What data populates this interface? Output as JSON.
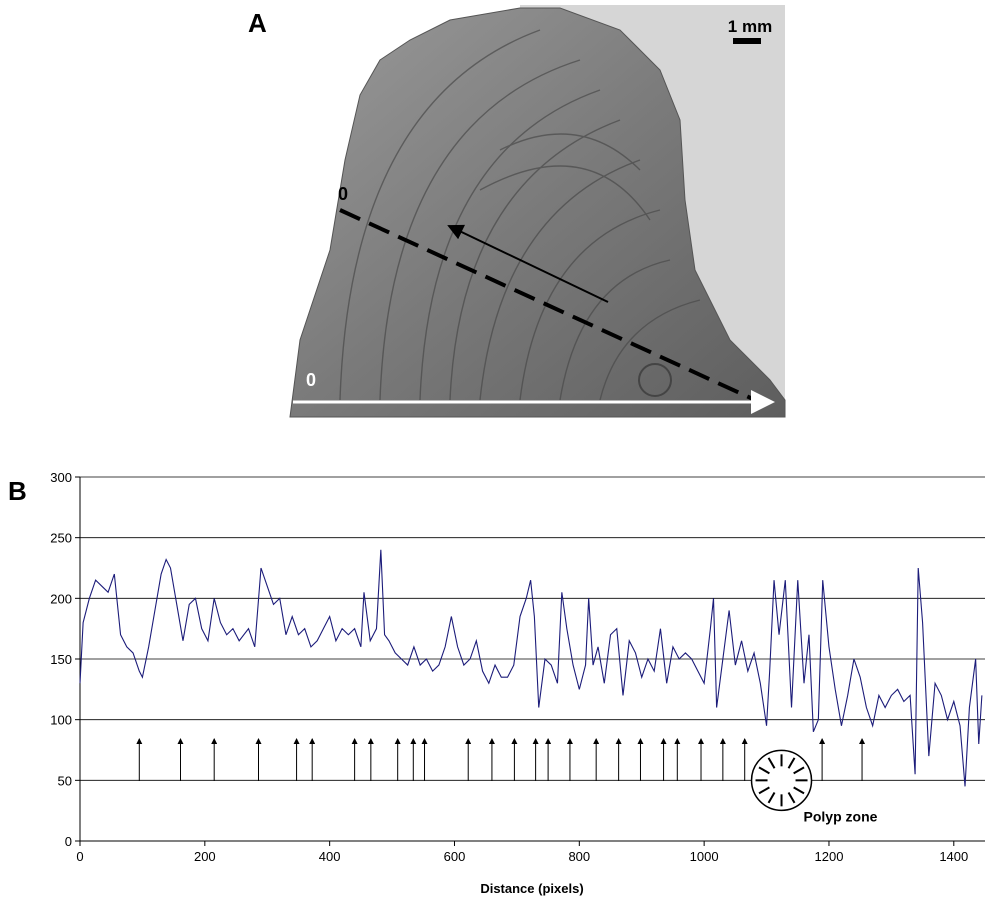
{
  "panel_a": {
    "label": "A",
    "scale_bar": "1 mm",
    "origin_labels": [
      "0",
      "0"
    ]
  },
  "chart_data": {
    "type": "line",
    "panel_label": "B",
    "xlabel": "Distance (pixels)",
    "x": [
      0,
      5,
      15,
      25,
      35,
      45,
      55,
      65,
      75,
      85,
      95,
      100,
      110,
      120,
      130,
      138,
      145,
      155,
      165,
      175,
      185,
      195,
      205,
      215,
      225,
      235,
      245,
      255,
      270,
      280,
      290,
      300,
      310,
      320,
      330,
      340,
      350,
      360,
      370,
      380,
      390,
      400,
      410,
      420,
      430,
      440,
      450,
      455,
      465,
      475,
      482,
      488,
      495,
      505,
      515,
      525,
      535,
      545,
      555,
      565,
      575,
      585,
      595,
      605,
      615,
      625,
      635,
      645,
      655,
      665,
      675,
      685,
      695,
      705,
      715,
      722,
      728,
      735,
      745,
      755,
      765,
      772,
      780,
      790,
      800,
      810,
      815,
      822,
      830,
      840,
      850,
      860,
      870,
      880,
      890,
      900,
      910,
      920,
      930,
      940,
      950,
      960,
      970,
      980,
      990,
      1000,
      1010,
      1015,
      1020,
      1030,
      1040,
      1050,
      1060,
      1070,
      1080,
      1090,
      1100,
      1105,
      1112,
      1120,
      1130,
      1140,
      1150,
      1160,
      1168,
      1175,
      1183,
      1190,
      1200,
      1210,
      1220,
      1230,
      1240,
      1250,
      1260,
      1270,
      1280,
      1290,
      1300,
      1310,
      1320,
      1330,
      1338,
      1343,
      1350,
      1360,
      1370,
      1380,
      1390,
      1400,
      1410,
      1418,
      1425,
      1435,
      1440,
      1445
    ],
    "values": [
      130,
      180,
      200,
      215,
      210,
      205,
      220,
      170,
      160,
      155,
      140,
      135,
      160,
      190,
      220,
      232,
      225,
      195,
      165,
      195,
      200,
      175,
      165,
      200,
      180,
      170,
      175,
      165,
      175,
      160,
      225,
      210,
      195,
      200,
      170,
      185,
      170,
      175,
      160,
      165,
      175,
      185,
      165,
      175,
      170,
      175,
      160,
      205,
      165,
      175,
      240,
      170,
      165,
      155,
      150,
      145,
      160,
      145,
      150,
      140,
      145,
      160,
      185,
      160,
      145,
      150,
      165,
      140,
      130,
      145,
      135,
      135,
      145,
      185,
      200,
      215,
      185,
      110,
      150,
      145,
      130,
      205,
      175,
      145,
      125,
      145,
      200,
      145,
      160,
      130,
      170,
      175,
      120,
      165,
      155,
      135,
      150,
      140,
      175,
      130,
      160,
      150,
      155,
      150,
      140,
      130,
      175,
      200,
      110,
      150,
      190,
      145,
      165,
      140,
      155,
      130,
      95,
      140,
      215,
      170,
      215,
      110,
      215,
      130,
      170,
      90,
      100,
      215,
      160,
      125,
      95,
      120,
      150,
      135,
      110,
      95,
      120,
      110,
      120,
      125,
      115,
      120,
      55,
      225,
      180,
      70,
      130,
      120,
      100,
      115,
      95,
      45,
      110,
      150,
      80,
      120
    ],
    "color": "#1c1c7a",
    "xlim": [
      0,
      1450
    ],
    "ylim": [
      0,
      300
    ],
    "xticks": [
      0,
      200,
      400,
      600,
      800,
      1000,
      1200,
      1400
    ],
    "yticks": [
      0,
      50,
      100,
      150,
      200,
      250,
      300
    ],
    "grid": true,
    "band_markers": [
      95,
      161,
      215,
      286,
      347,
      372,
      440,
      466,
      509,
      534,
      552,
      622,
      660,
      696,
      730,
      750,
      785,
      827,
      863,
      898,
      935,
      957,
      995,
      1030,
      1065,
      1189,
      1253
    ],
    "polyp_zone": {
      "label": "Polyp zone",
      "x": 1124,
      "y": 50
    }
  }
}
